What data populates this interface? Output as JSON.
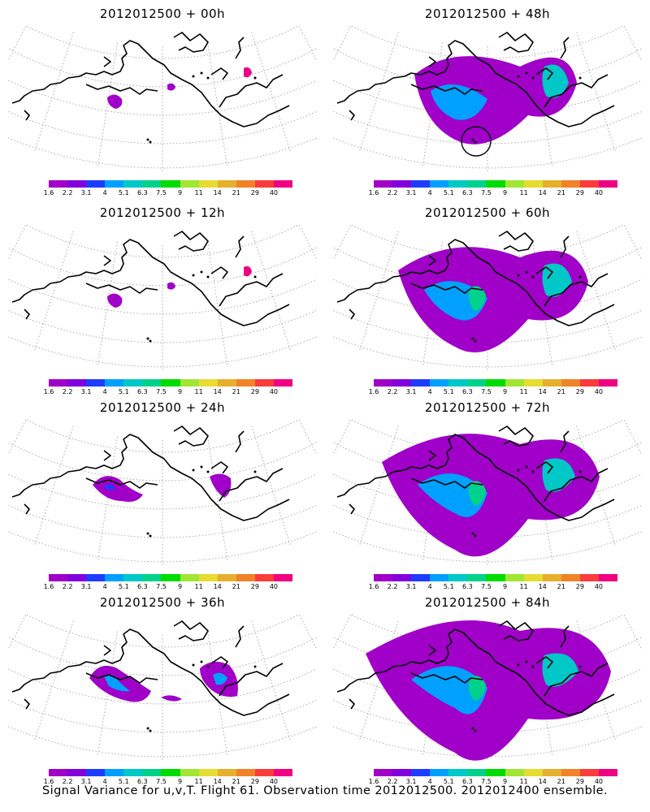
{
  "colorbar": {
    "colors": [
      "#a000c8",
      "#8200dc",
      "#1e3cff",
      "#00a0ff",
      "#00c8c8",
      "#00d28c",
      "#00dc00",
      "#a0e632",
      "#e6dc32",
      "#e6af2d",
      "#f08228",
      "#fa3c3c",
      "#f00082"
    ],
    "labels": [
      "1.6",
      "2.2",
      "3.1",
      "4",
      "5.1",
      "6.3",
      "7.5",
      "9",
      "11",
      "14",
      "21",
      "29",
      "40"
    ]
  },
  "panels": [
    {
      "title": "2012012500 + 00h",
      "level": 0
    },
    {
      "title": "2012012500 + 48h",
      "level": 4
    },
    {
      "title": "2012012500 + 12h",
      "level": 0
    },
    {
      "title": "2012012500 + 60h",
      "level": 5
    },
    {
      "title": "2012012500 + 24h",
      "level": 1
    },
    {
      "title": "2012012500 + 72h",
      "level": 6
    },
    {
      "title": "2012012500 + 36h",
      "level": 2
    },
    {
      "title": "2012012500 + 84h",
      "level": 7
    }
  ],
  "caption": "Signal Variance for u,v,T. Flight 61. Observation time 2012012500. 2012012400 ensemble.",
  "marked_location": "circled island in 48h panel"
}
